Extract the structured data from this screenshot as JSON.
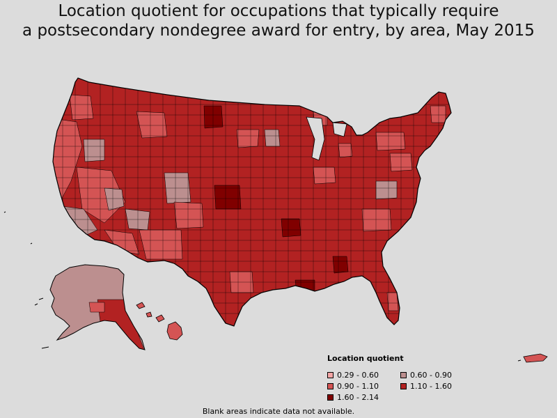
{
  "title": {
    "line1": "Location quotient for occupations that typically require",
    "line2": "a postsecondary nondegree award for entry, by area, May 2015"
  },
  "legend": {
    "title": "Location quotient",
    "items": [
      {
        "label": "0.29 - 0.60",
        "color": "#f4a6a6"
      },
      {
        "label": "0.60 - 0.90",
        "color": "#bc8f8f"
      },
      {
        "label": "0.90 - 1.10",
        "color": "#d45454"
      },
      {
        "label": "1.10 - 1.60",
        "color": "#b22222"
      },
      {
        "label": "1.60 - 2.14",
        "color": "#800000"
      }
    ]
  },
  "note": "Blank areas indicate data not available.",
  "colors": {
    "background": "#dcdcdc",
    "border": "#000000"
  }
}
